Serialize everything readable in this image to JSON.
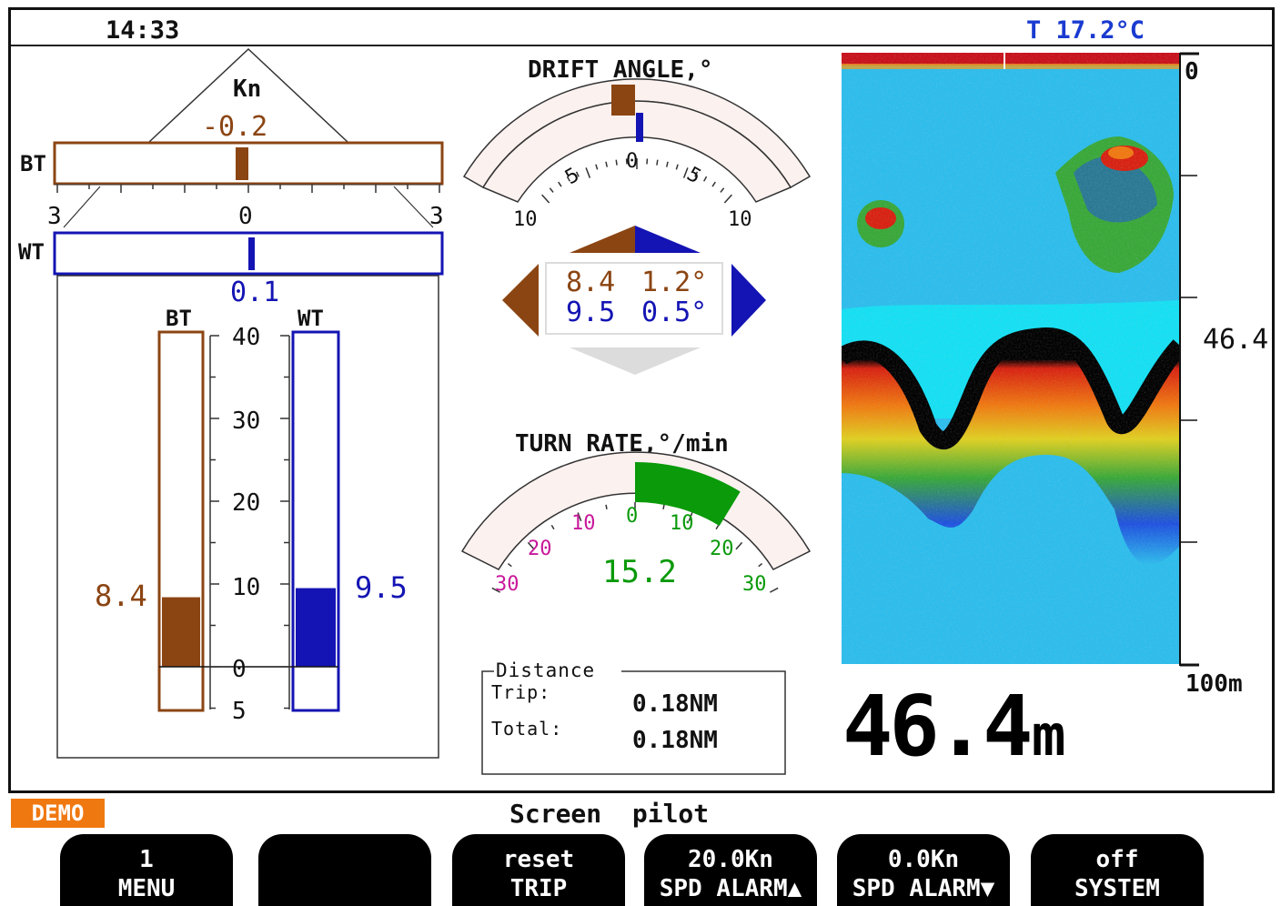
{
  "status": {
    "time": "14:33",
    "temperature": "T 17.2°C"
  },
  "speed_panel": {
    "unit": "Kn",
    "bt_label": "BT",
    "wt_label": "WT",
    "bt_transverse_value": "-0.2",
    "bt_transverse": -0.2,
    "wt_transverse_value": "0.1",
    "wt_transverse": 0.1,
    "scale_left": "3",
    "scale_center": "0",
    "scale_right": "3",
    "bars": {
      "bt_label": "BT",
      "wt_label": "WT",
      "ticks": [
        "40",
        "30",
        "20",
        "10",
        "0",
        "5"
      ],
      "bt_value": "8.4",
      "bt": 8.4,
      "wt_value": "9.5",
      "wt": 9.5,
      "range_max": 40,
      "range_min": -5
    }
  },
  "drift_angle": {
    "title": "DRIFT ANGLE,°",
    "tick_labels": [
      "10",
      "5",
      "0",
      "5",
      "10"
    ],
    "bt_angle": 1.2,
    "wt_angle": 0.5,
    "bt_speed_text": "8.4",
    "bt_angle_text": "1.2°",
    "wt_speed_text": "9.5",
    "wt_angle_text": "0.5°"
  },
  "turn_rate": {
    "title": "TURN RATE,°/min",
    "left_labels": [
      "30",
      "20",
      "10"
    ],
    "center_label": "0",
    "right_labels": [
      "10",
      "20",
      "30"
    ],
    "value_text": "15.2",
    "value": 15.2
  },
  "distance": {
    "title": "Distance",
    "trip_label": "Trip:",
    "trip_value": "0.18NM",
    "total_label": "Total:",
    "total_value": "0.18NM"
  },
  "echogram": {
    "scale_top": "0",
    "scale_bottom": "100m",
    "current_depth_marker": "46.4",
    "depth_readout": "46.4m",
    "depth_number": "46.4",
    "depth_unit": "m"
  },
  "colors": {
    "bt": "#8b4513",
    "wt": "#1414b4",
    "turn_green": "#0a9a0a",
    "turn_left_labels": "#c8189a",
    "demo": "#f07810"
  },
  "footer": {
    "demo_badge": "DEMO",
    "screen_title": "Screen  pilot",
    "softkeys": [
      {
        "line1": "1",
        "line2": "MENU"
      },
      {
        "line1": "",
        "line2": ""
      },
      {
        "line1": "reset",
        "line2": "TRIP"
      },
      {
        "line1": "20.0Kn",
        "line2": "SPD ALARM▲"
      },
      {
        "line1": "0.0Kn",
        "line2": "SPD ALARM▼"
      },
      {
        "line1": "off",
        "line2": "SYSTEM"
      }
    ]
  }
}
